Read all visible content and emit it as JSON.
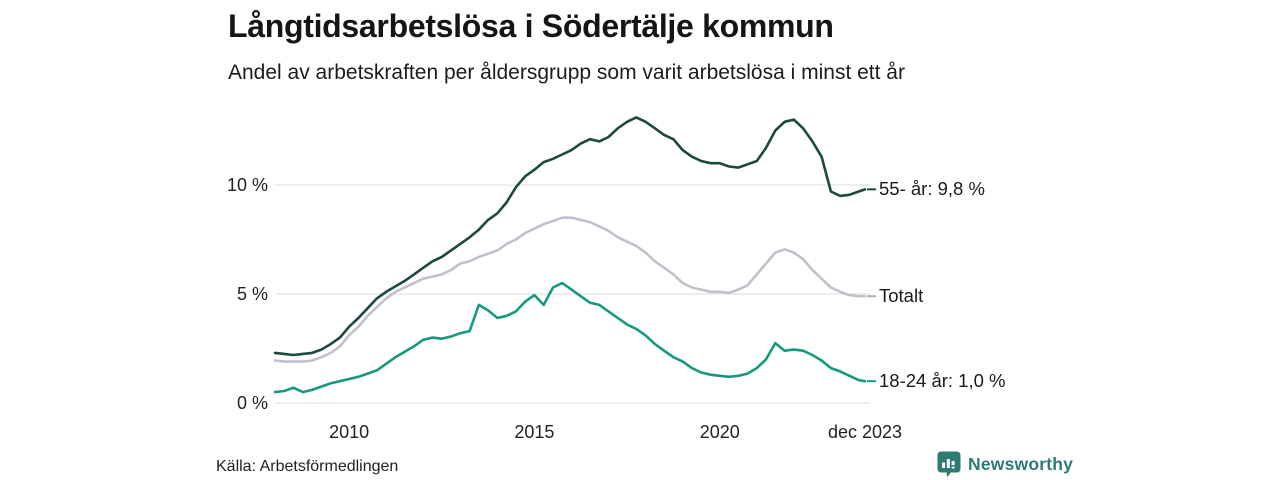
{
  "header": {
    "title": "Långtidsarbetslösa i Södertälje kommun",
    "subtitle": "Andel av arbetskraften per åldersgrupp som varit arbetslösa i minst ett år"
  },
  "chart_data": {
    "type": "line",
    "title": "Långtidsarbetslösa i Södertälje kommun",
    "subtitle": "Andel av arbetskraften per åldersgrupp som varit arbetslösa i minst ett år",
    "unit": "%",
    "grid": true,
    "legend_position": "right-end-labels",
    "x_range": [
      2008,
      2023.92
    ],
    "ylim": [
      0,
      13.5
    ],
    "y_ticks": [
      {
        "value": 0,
        "label": "0 %"
      },
      {
        "value": 5,
        "label": "5 %"
      },
      {
        "value": 10,
        "label": "10 %"
      }
    ],
    "x_ticks": [
      {
        "value": 2010,
        "label": "2010"
      },
      {
        "value": 2015,
        "label": "2015"
      },
      {
        "value": 2020,
        "label": "2020"
      },
      {
        "value": 2023.92,
        "label": "dec 2023"
      }
    ],
    "x": [
      2008,
      2008.25,
      2008.5,
      2008.75,
      2009,
      2009.25,
      2009.5,
      2009.75,
      2010,
      2010.25,
      2010.5,
      2010.75,
      2011,
      2011.25,
      2011.5,
      2011.75,
      2012,
      2012.25,
      2012.5,
      2012.75,
      2013,
      2013.25,
      2013.5,
      2013.75,
      2014,
      2014.25,
      2014.5,
      2014.75,
      2015,
      2015.25,
      2015.5,
      2015.75,
      2016,
      2016.25,
      2016.5,
      2016.75,
      2017,
      2017.25,
      2017.5,
      2017.75,
      2018,
      2018.25,
      2018.5,
      2018.75,
      2019,
      2019.25,
      2019.5,
      2019.75,
      2020,
      2020.25,
      2020.5,
      2020.75,
      2021,
      2021.25,
      2021.5,
      2021.75,
      2022,
      2022.25,
      2022.5,
      2022.75,
      2023,
      2023.25,
      2023.5,
      2023.75,
      2023.92
    ],
    "series": [
      {
        "name": "55- år",
        "end_label": "55- år: 9,8 %",
        "end_value_text": "9,8 %",
        "color": "#1c4940",
        "values": [
          2.3,
          2.25,
          2.2,
          2.25,
          2.3,
          2.45,
          2.7,
          3.0,
          3.5,
          3.9,
          4.35,
          4.8,
          5.1,
          5.35,
          5.6,
          5.9,
          6.2,
          6.5,
          6.7,
          7.0,
          7.3,
          7.6,
          7.95,
          8.4,
          8.7,
          9.2,
          9.9,
          10.4,
          10.7,
          11.05,
          11.2,
          11.4,
          11.6,
          11.9,
          12.1,
          12.0,
          12.2,
          12.6,
          12.9,
          13.1,
          12.9,
          12.6,
          12.3,
          12.1,
          11.6,
          11.3,
          11.1,
          11.0,
          11.0,
          10.85,
          10.8,
          10.95,
          11.1,
          11.7,
          12.5,
          12.9,
          13.0,
          12.6,
          12.0,
          11.3,
          9.7,
          9.5,
          9.55,
          9.7,
          9.8
        ]
      },
      {
        "name": "Totalt",
        "end_label": "Totalt",
        "end_value_text": "",
        "color": "#c2c0cb",
        "values": [
          1.95,
          1.9,
          1.9,
          1.9,
          1.95,
          2.1,
          2.3,
          2.6,
          3.1,
          3.5,
          4.0,
          4.4,
          4.8,
          5.1,
          5.3,
          5.5,
          5.7,
          5.8,
          5.9,
          6.1,
          6.4,
          6.5,
          6.7,
          6.85,
          7.0,
          7.3,
          7.5,
          7.8,
          8.0,
          8.2,
          8.35,
          8.5,
          8.5,
          8.4,
          8.3,
          8.1,
          7.9,
          7.6,
          7.4,
          7.2,
          6.9,
          6.5,
          6.2,
          5.9,
          5.5,
          5.3,
          5.2,
          5.1,
          5.1,
          5.05,
          5.2,
          5.4,
          5.9,
          6.4,
          6.9,
          7.05,
          6.9,
          6.6,
          6.1,
          5.7,
          5.3,
          5.1,
          4.95,
          4.9,
          4.9
        ]
      },
      {
        "name": "18-24 år",
        "end_label": "18-24 år: 1,0 %",
        "end_value_text": "1,0 %",
        "color": "#16997e",
        "values": [
          0.5,
          0.55,
          0.7,
          0.5,
          0.6,
          0.75,
          0.9,
          1.0,
          1.1,
          1.2,
          1.35,
          1.5,
          1.8,
          2.1,
          2.35,
          2.6,
          2.9,
          3.0,
          2.95,
          3.05,
          3.2,
          3.3,
          4.5,
          4.25,
          3.9,
          4.0,
          4.2,
          4.65,
          4.95,
          4.5,
          5.3,
          5.5,
          5.2,
          4.9,
          4.6,
          4.5,
          4.2,
          3.9,
          3.6,
          3.4,
          3.1,
          2.7,
          2.4,
          2.1,
          1.9,
          1.6,
          1.4,
          1.3,
          1.25,
          1.2,
          1.25,
          1.35,
          1.6,
          2.0,
          2.75,
          2.4,
          2.45,
          2.4,
          2.2,
          1.95,
          1.6,
          1.45,
          1.25,
          1.05,
          1.0
        ]
      }
    ],
    "gridline_color": "#e3e3e3"
  },
  "footer": {
    "source": "Källa: Arbetsförmedlingen",
    "brand": "Newsworthy",
    "brand_color": "#2e7b72",
    "brand_icon": "bar-chart-bubble-icon"
  }
}
